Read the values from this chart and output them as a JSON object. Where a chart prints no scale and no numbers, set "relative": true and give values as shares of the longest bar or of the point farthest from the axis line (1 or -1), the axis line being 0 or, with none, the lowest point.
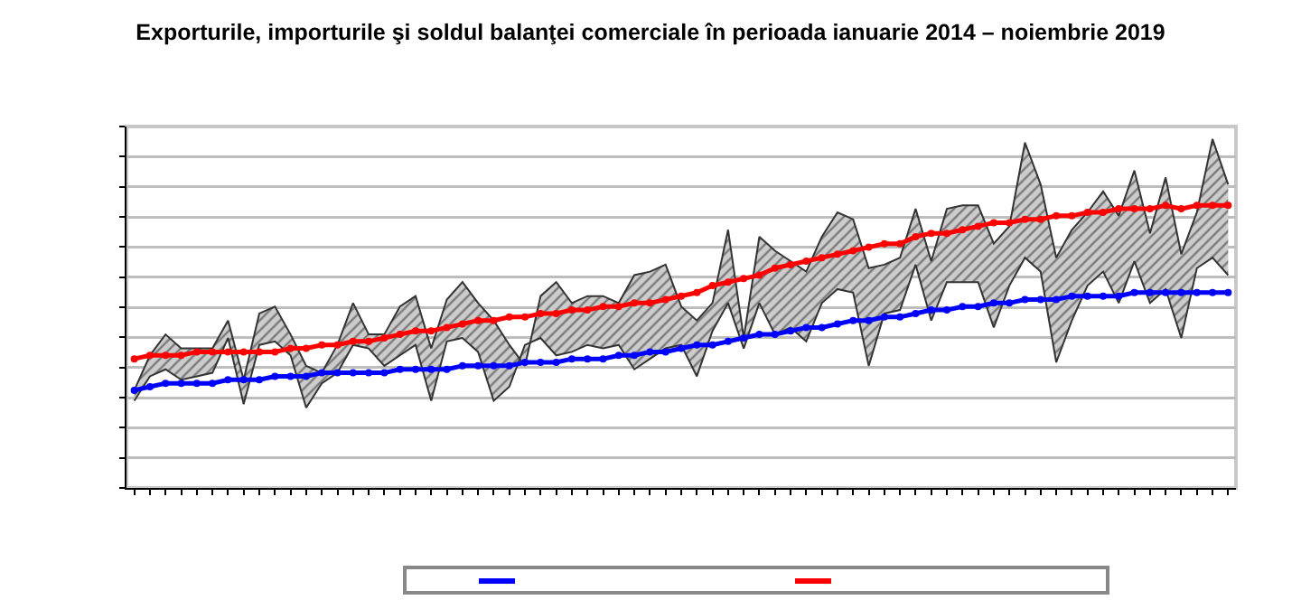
{
  "chart_data": {
    "type": "line",
    "title": "Exporturile, importurile şi soldul balanţei comerciale în perioada ianuarie 2014 – noiembrie 2019",
    "relative": true,
    "grid": "y",
    "categories": [
      null,
      null,
      null,
      null,
      null,
      null,
      null,
      null,
      null,
      null,
      null,
      null,
      null,
      null,
      null,
      null,
      null,
      null,
      null,
      null,
      null,
      null,
      null,
      null,
      null,
      null,
      null,
      null,
      null,
      null,
      null,
      null,
      null,
      null,
      null,
      null,
      null,
      null,
      null,
      null,
      null,
      null,
      null,
      null,
      null,
      null,
      null,
      null,
      null,
      null,
      null,
      null,
      null,
      null,
      null,
      null,
      null,
      null,
      null,
      null,
      null,
      null,
      null,
      null,
      null,
      null,
      null,
      null,
      null,
      null,
      null
    ],
    "series": [
      {
        "color": "#333333",
        "marker": "none",
        "values": [
          0.25,
          0.32,
          0.34,
          0.31,
          0.32,
          0.33,
          0.43,
          0.24,
          0.41,
          0.42,
          0.38,
          0.23,
          0.3,
          0.33,
          0.41,
          0.4,
          0.35,
          0.38,
          0.41,
          0.25,
          0.42,
          0.43,
          0.39,
          0.25,
          0.29,
          0.41,
          0.43,
          0.38,
          0.39,
          0.41,
          0.4,
          0.41,
          0.34,
          0.37,
          0.4,
          0.41,
          0.32,
          0.45,
          0.53,
          0.4,
          0.53,
          0.44,
          0.46,
          0.42,
          0.53,
          0.57,
          0.56,
          0.35,
          0.5,
          0.51,
          0.64,
          0.48,
          0.59,
          0.59,
          0.59,
          0.46,
          0.58,
          0.66,
          0.62,
          0.36,
          0.48,
          0.58,
          0.62,
          0.53,
          0.65,
          0.53,
          0.57,
          0.43,
          0.63,
          0.66,
          0.61
        ]
      },
      {
        "type": "area",
        "color": "#333333",
        "marker": "none",
        "values": [
          0.28,
          0.38,
          0.44,
          0.4,
          0.4,
          0.4,
          0.48,
          0.31,
          0.5,
          0.52,
          0.44,
          0.35,
          0.33,
          0.41,
          0.53,
          0.44,
          0.44,
          0.52,
          0.55,
          0.4,
          0.54,
          0.59,
          0.53,
          0.48,
          0.41,
          0.35,
          0.55,
          0.59,
          0.53,
          0.55,
          0.55,
          0.53,
          0.61,
          0.62,
          0.64,
          0.52,
          0.48,
          0.53,
          0.74,
          0.43,
          0.72,
          0.68,
          0.65,
          0.62,
          0.72,
          0.79,
          0.77,
          0.63,
          0.64,
          0.66,
          0.8,
          0.65,
          0.8,
          0.81,
          0.81,
          0.7,
          0.75,
          0.99,
          0.87,
          0.66,
          0.74,
          0.79,
          0.85,
          0.78,
          0.91,
          0.73,
          0.89,
          0.67,
          0.79,
          1,
          0.87
        ]
      },
      {
        "color": "#0000ff",
        "marker": "circle",
        "values": [
          0.28,
          0.29,
          0.3,
          0.3,
          0.3,
          0.3,
          0.31,
          0.31,
          0.31,
          0.32,
          0.32,
          0.32,
          0.33,
          0.33,
          0.33,
          0.33,
          0.33,
          0.34,
          0.34,
          0.34,
          0.34,
          0.35,
          0.35,
          0.35,
          0.35,
          0.36,
          0.36,
          0.36,
          0.37,
          0.37,
          0.37,
          0.38,
          0.38,
          0.39,
          0.39,
          0.4,
          0.41,
          0.41,
          0.42,
          0.43,
          0.44,
          0.44,
          0.45,
          0.46,
          0.46,
          0.47,
          0.48,
          0.48,
          0.49,
          0.49,
          0.5,
          0.51,
          0.51,
          0.52,
          0.52,
          0.53,
          0.53,
          0.54,
          0.54,
          0.54,
          0.55,
          0.55,
          0.55,
          0.55,
          0.56,
          0.56,
          0.56,
          0.56,
          0.56,
          0.56,
          0.56
        ]
      },
      {
        "color": "#ff0000",
        "marker": "circle",
        "values": [
          0.37,
          0.38,
          0.38,
          0.38,
          0.39,
          0.39,
          0.39,
          0.39,
          0.39,
          0.39,
          0.4,
          0.4,
          0.41,
          0.41,
          0.42,
          0.42,
          0.43,
          0.44,
          0.45,
          0.45,
          0.46,
          0.47,
          0.48,
          0.48,
          0.49,
          0.49,
          0.5,
          0.5,
          0.51,
          0.51,
          0.52,
          0.52,
          0.53,
          0.53,
          0.54,
          0.55,
          0.56,
          0.58,
          0.59,
          0.6,
          0.61,
          0.63,
          0.64,
          0.65,
          0.66,
          0.67,
          0.68,
          0.69,
          0.7,
          0.7,
          0.72,
          0.73,
          0.73,
          0.74,
          0.75,
          0.76,
          0.76,
          0.77,
          0.77,
          0.78,
          0.78,
          0.79,
          0.79,
          0.8,
          0.8,
          0.8,
          0.81,
          0.8,
          0.81,
          0.81,
          0.81
        ]
      }
    ]
  }
}
